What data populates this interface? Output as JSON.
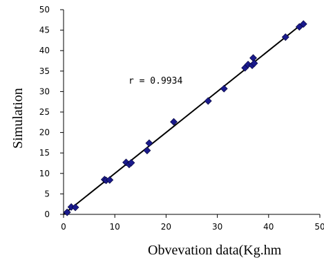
{
  "chart_data": {
    "type": "scatter",
    "xlabel": "Obvevation data(Kg.hm",
    "ylabel": "Simulation",
    "xlim": [
      0,
      50
    ],
    "ylim": [
      0,
      50
    ],
    "x_ticks": [
      "0",
      "10",
      "20",
      "30",
      "40",
      "50"
    ],
    "y_ticks": [
      "0",
      "5",
      "10",
      "15",
      "20",
      "25",
      "30",
      "35",
      "40",
      "45",
      "50"
    ],
    "grid": false,
    "legend": "none",
    "annotation": "r = 0.9934",
    "marker_color": "#1a1a8c",
    "line_color": "#000000",
    "fit_line": {
      "x": [
        0,
        47
      ],
      "y": [
        0,
        47
      ]
    },
    "points": [
      {
        "x": 0.7,
        "y": 0.5
      },
      {
        "x": 1.5,
        "y": 1.8
      },
      {
        "x": 2.3,
        "y": 1.7
      },
      {
        "x": 8.0,
        "y": 8.5
      },
      {
        "x": 8.3,
        "y": 8.3
      },
      {
        "x": 9.0,
        "y": 8.4
      },
      {
        "x": 12.2,
        "y": 12.7
      },
      {
        "x": 12.8,
        "y": 12.2
      },
      {
        "x": 13.2,
        "y": 12.6
      },
      {
        "x": 16.3,
        "y": 15.6
      },
      {
        "x": 16.7,
        "y": 17.4
      },
      {
        "x": 21.5,
        "y": 22.6
      },
      {
        "x": 28.2,
        "y": 27.7
      },
      {
        "x": 31.3,
        "y": 30.7
      },
      {
        "x": 35.4,
        "y": 35.8
      },
      {
        "x": 36.0,
        "y": 36.6
      },
      {
        "x": 36.8,
        "y": 36.4
      },
      {
        "x": 37.0,
        "y": 38.2
      },
      {
        "x": 37.2,
        "y": 36.9
      },
      {
        "x": 43.3,
        "y": 43.3
      },
      {
        "x": 46.0,
        "y": 45.8
      },
      {
        "x": 46.8,
        "y": 46.5
      }
    ]
  }
}
